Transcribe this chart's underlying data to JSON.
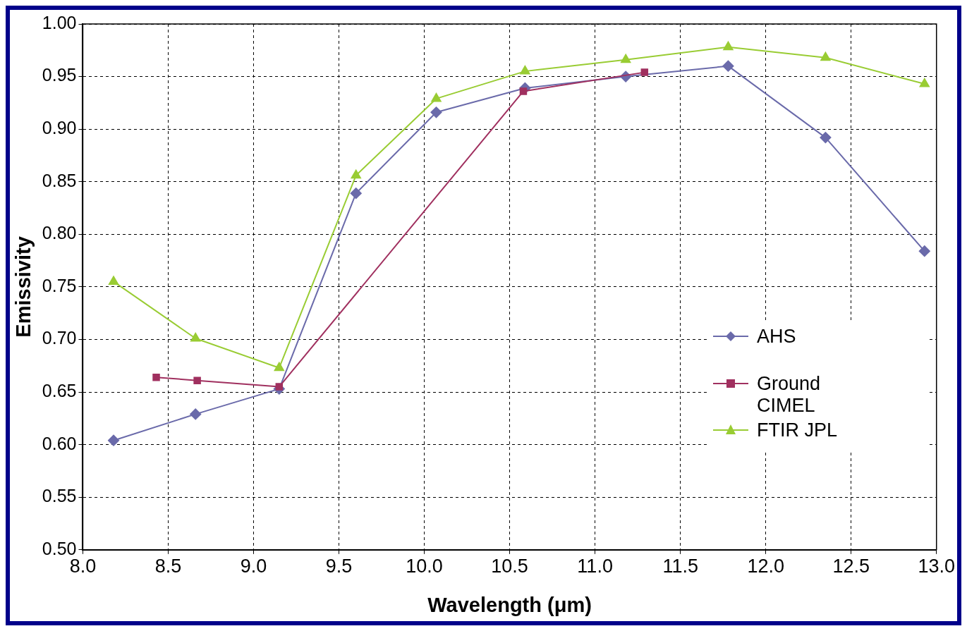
{
  "chart_data": {
    "type": "line",
    "xlabel": "Wavelength (μm)",
    "ylabel": "Emissivity",
    "xlim": [
      8,
      13
    ],
    "xticks": [
      {
        "value": 8,
        "label": "8.0"
      },
      {
        "value": 8.5,
        "label": "8.5"
      },
      {
        "value": 9,
        "label": "9.0"
      },
      {
        "value": 9.5,
        "label": "9.5"
      },
      {
        "value": 10,
        "label": "10.0"
      },
      {
        "value": 10.5,
        "label": "10.5"
      },
      {
        "value": 11,
        "label": "11.0"
      },
      {
        "value": 11.5,
        "label": "11.5"
      },
      {
        "value": 12,
        "label": "12.0"
      },
      {
        "value": 12.5,
        "label": "12.5"
      },
      {
        "value": 13,
        "label": "13.0"
      }
    ],
    "ylim": [
      0.5,
      1
    ],
    "yticks": [
      {
        "value": 0.5,
        "label": "0.50"
      },
      {
        "value": 0.55,
        "label": "0.55"
      },
      {
        "value": 0.6,
        "label": "0.60"
      },
      {
        "value": 0.65,
        "label": "0.65"
      },
      {
        "value": 0.7,
        "label": "0.70"
      },
      {
        "value": 0.75,
        "label": "0.75"
      },
      {
        "value": 0.8,
        "label": "0.80"
      },
      {
        "value": 0.85,
        "label": "0.85"
      },
      {
        "value": 0.9,
        "label": "0.90"
      },
      {
        "value": 0.95,
        "label": "0.95"
      },
      {
        "value": 1,
        "label": "1.00"
      }
    ],
    "grid": true,
    "legend": "right",
    "line_style": "solid",
    "series": [
      {
        "name": "AHS",
        "color": "#6a6aaa",
        "marker": "diamond",
        "x": [
          8.18,
          8.66,
          9.15,
          9.6,
          10.07,
          10.59,
          11.18,
          11.78,
          12.35,
          12.93
        ],
        "values": [
          0.604,
          0.629,
          0.653,
          0.839,
          0.916,
          0.939,
          0.95,
          0.96,
          0.892,
          0.784
        ]
      },
      {
        "name": "Ground CIMEL",
        "color": "#a0305f",
        "marker": "square",
        "x": [
          8.43,
          8.67,
          9.15,
          10.58,
          11.29
        ],
        "values": [
          0.664,
          0.661,
          0.655,
          0.936,
          0.954
        ]
      },
      {
        "name": "FTIR JPL",
        "color": "#99cc33",
        "marker": "triangle",
        "x": [
          8.18,
          8.66,
          9.15,
          9.6,
          10.07,
          10.59,
          11.18,
          11.78,
          12.35,
          12.93
        ],
        "values": [
          0.755,
          0.701,
          0.673,
          0.856,
          0.929,
          0.955,
          0.966,
          0.978,
          0.968,
          0.943
        ]
      }
    ]
  }
}
